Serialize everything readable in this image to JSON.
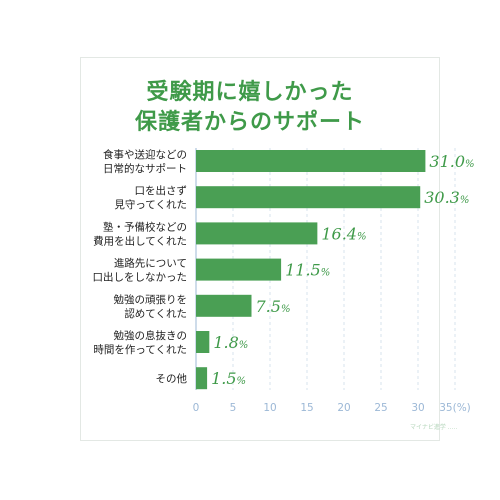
{
  "title_lines": [
    "受験期に嬉しかった",
    "保護者からのサポート"
  ],
  "watermark": "マイナビ進学 .....",
  "colors": {
    "bar": "#4a9f54",
    "title": "#3f9a49",
    "value": "#3f9a49",
    "axis": "#9cb8d6",
    "grid": "#d7e3ee"
  },
  "chart_data": {
    "type": "bar",
    "orientation": "horizontal",
    "categories": [
      [
        "食事や送迎などの",
        "日常的なサポート"
      ],
      [
        "口を出さず",
        "見守ってくれた"
      ],
      [
        "塾・予備校などの",
        "費用を出してくれた"
      ],
      [
        "進路先について",
        "口出しをしなかった"
      ],
      [
        "勉強の頑張りを",
        "認めてくれた"
      ],
      [
        "勉強の息抜きの",
        "時間を作ってくれた"
      ],
      [
        "その他"
      ]
    ],
    "values": [
      31.0,
      30.3,
      16.4,
      11.5,
      7.5,
      1.8,
      1.5
    ],
    "value_labels": [
      {
        "number": "31.0",
        "unit": "%"
      },
      {
        "number": "30.3",
        "unit": "%"
      },
      {
        "number": "16.4",
        "unit": "%"
      },
      {
        "number": "11.5",
        "unit": "%"
      },
      {
        "number": "7.5",
        "unit": "%"
      },
      {
        "number": "1.8",
        "unit": "%"
      },
      {
        "number": "1.5",
        "unit": "%"
      }
    ],
    "xticks": [
      "0",
      "5",
      "10",
      "15",
      "20",
      "25",
      "30",
      "35(%)"
    ],
    "xtick_values": [
      0,
      5,
      10,
      15,
      20,
      25,
      30,
      35
    ],
    "xlim": [
      0,
      35
    ],
    "grid": true
  }
}
